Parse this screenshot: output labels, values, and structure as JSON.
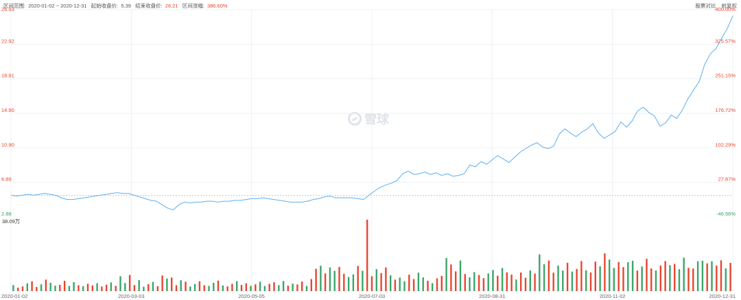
{
  "header": {
    "range_label": "区间范围:",
    "range_value": "2020-01-02 ~ 2020-12-31",
    "start_label": "起始收盘价:",
    "start_value": "5.39",
    "end_label": "结束收盘价:",
    "end_value": "26.21",
    "change_label": "区间涨幅:",
    "change_value": "386.60%",
    "compare_button": "股票对比",
    "adjust_button": "前复权"
  },
  "watermark": "雪球",
  "colors": {
    "line": "#5aaef0",
    "up": "#e8452e",
    "down": "#3aa56b",
    "grid": "#eef0f3",
    "baseline": "#c8c8c8"
  },
  "chart_data": [
    {
      "type": "line",
      "y_ticks_left": [
        "26.93",
        "22.92",
        "18.91",
        "14.90",
        "10.90",
        "6.89",
        "2.88"
      ],
      "y_ticks_right": [
        "400.00%",
        "325.57%",
        "251.15%",
        "176.72%",
        "102.29%",
        "27.87%",
        "-46.56%"
      ],
      "ylim": [
        2.88,
        26.93
      ],
      "baseline": 5.39,
      "x_ticks": [
        "2020-01-02",
        "2020-03-03",
        "2020-05-05",
        "2020-07-03",
        "2020-08-31",
        "2020-11-02",
        "2020-12-31"
      ],
      "values": [
        5.4,
        5.3,
        5.4,
        5.5,
        5.4,
        5.5,
        5.6,
        5.5,
        5.4,
        5.1,
        4.9,
        4.9,
        5.0,
        5.1,
        5.2,
        5.3,
        5.4,
        5.5,
        5.6,
        5.7,
        5.6,
        5.6,
        5.4,
        5.2,
        5.0,
        4.8,
        4.7,
        4.3,
        3.9,
        3.7,
        4.3,
        4.6,
        4.5,
        4.6,
        4.6,
        4.7,
        4.7,
        4.6,
        4.7,
        4.7,
        4.8,
        4.8,
        4.9,
        5.0,
        5.0,
        5.1,
        5.0,
        4.9,
        4.8,
        4.7,
        4.6,
        4.6,
        4.6,
        4.7,
        4.9,
        5.0,
        5.2,
        5.3,
        5.1,
        5.1,
        5.1,
        5.1,
        5.0,
        4.9,
        5.4,
        5.9,
        6.3,
        6.6,
        6.8,
        7.1,
        7.9,
        8.2,
        7.8,
        7.9,
        8.1,
        7.8,
        8.0,
        7.7,
        7.9,
        7.6,
        7.7,
        7.9,
        8.9,
        8.7,
        9.3,
        9.0,
        9.5,
        10.0,
        9.6,
        9.2,
        9.8,
        10.4,
        10.8,
        11.2,
        11.5,
        11.0,
        10.8,
        11.1,
        12.5,
        13.1,
        12.6,
        12.2,
        12.7,
        13.1,
        13.7,
        12.6,
        12.0,
        12.4,
        12.8,
        13.9,
        13.3,
        14.0,
        15.2,
        15.6,
        15.0,
        14.6,
        13.4,
        13.8,
        14.7,
        14.3,
        15.3,
        16.6,
        17.6,
        18.6,
        20.6,
        21.8,
        22.4,
        23.6,
        24.7,
        26.2
      ]
    },
    {
      "type": "bar",
      "title": "38.09万",
      "ylim": [
        0,
        38.09
      ],
      "values": [
        3.2,
        1.8,
        2.5,
        4.1,
        5.2,
        2.2,
        3.6,
        6.1,
        4.4,
        2.9,
        3.3,
        5.5,
        2.7,
        4.8,
        3.1,
        2.6,
        3.9,
        3.0,
        4.2,
        2.4,
        3.4,
        4.6,
        2.8,
        7.9,
        4.3,
        8.6,
        3.2,
        5.9,
        2.3,
        3.7,
        4.9,
        2.6,
        8.3,
        6.7,
        7.2,
        3.1,
        5.8,
        5.0,
        2.4,
        3.8,
        5.2,
        3.1,
        2.7,
        4.4,
        5.6,
        3.0,
        2.5,
        3.9,
        5.3,
        3.3,
        4.1,
        2.8,
        3.6,
        5.0,
        2.7,
        3.9,
        4.7,
        3.2,
        5.4,
        2.9,
        4.0,
        3.5,
        5.1,
        2.8,
        6.4,
        11.9,
        13.5,
        9.4,
        12.6,
        10.8,
        12.9,
        9.2,
        7.5,
        8.9,
        13.4,
        10.8,
        38.1,
        7.9,
        11.7,
        9.6,
        12.6,
        8.4,
        6.1,
        7.2,
        5.2,
        8.7,
        6.4,
        9.8,
        7.3,
        5.5,
        4.2,
        6.8,
        8.1,
        17.6,
        14.2,
        10.5,
        16.3,
        9.1,
        7.3,
        10.1,
        8.6,
        6.9,
        9.4,
        11.2,
        8.2,
        12.3,
        10.0,
        8.8,
        6.2,
        9.9,
        7.1,
        11.0,
        9.3,
        19.6,
        14.3,
        16.3,
        9.8,
        13.6,
        10.9,
        15.1,
        10.4,
        11.8,
        16.0,
        11.1,
        9.9,
        15.7,
        13.2,
        20.1,
        16.8,
        12.3,
        15.5,
        12.8,
        15.4,
        16.2,
        10.9,
        13.1,
        17.2,
        12.1,
        11.0,
        13.6,
        16.0,
        13.8,
        14.5,
        11.7,
        17.8,
        12.4,
        12.0,
        15.9,
        16.2,
        14.8,
        15.9,
        13.6,
        16.4,
        12.1,
        15.0
      ]
    }
  ]
}
